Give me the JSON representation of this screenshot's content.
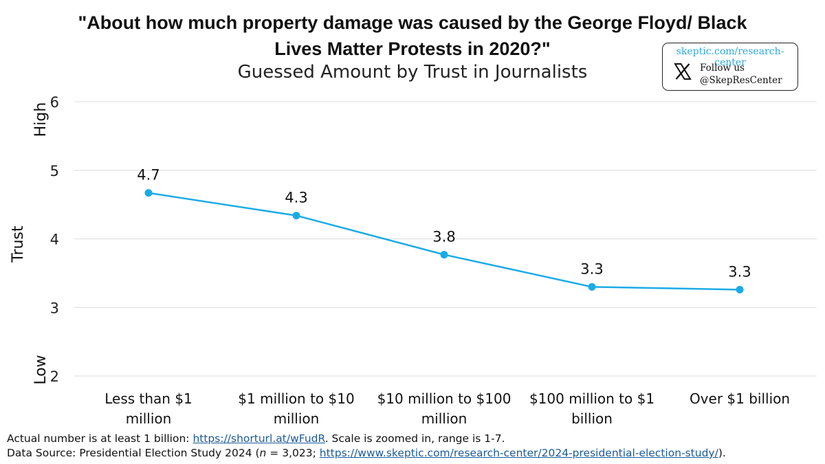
{
  "title": "\"About how much property damage was caused by the George Floyd/ Black Lives Matter Protests in 2020?\"",
  "subtitle": "Guessed Amount by Trust in Journalists",
  "badge": {
    "url": "skeptic.com/research-center",
    "follow": "Follow us",
    "handle": "@SkepResCenter",
    "icon": "x-logo-icon"
  },
  "chart_data": {
    "type": "line",
    "categories": [
      "Less than $1 million",
      "$1 million to $10 million",
      "$10 million to $100 million",
      "$100 million to $1 billion",
      "Over $1 billion"
    ],
    "series": [
      {
        "values": [
          4.67,
          4.34,
          3.77,
          3.3,
          3.26
        ],
        "labels": [
          "4.7",
          "4.3",
          "3.8",
          "3.3",
          "3.3"
        ]
      }
    ],
    "ylabel": "Trust",
    "ylim": [
      2,
      6
    ],
    "yticks": [
      2,
      3,
      4,
      5,
      6
    ],
    "y_low_label": "Low",
    "y_high_label": "High",
    "grid": true,
    "color": "#1aabe6"
  },
  "footnote": {
    "line1_prefix": "Actual number is at least 1 billion: ",
    "line1_link": "https://shorturl.at/wFudR",
    "line1_suffix": ". Scale is zoomed in, range is 1-7.",
    "line2_prefix": "Data Source: Presidential Election Study 2024 (",
    "line2_n": "n",
    "line2_mid": " = 3,023; ",
    "line2_link": "https://www.skeptic.com/research-center/2024-presidential-election-study/",
    "line2_suffix": ")."
  }
}
